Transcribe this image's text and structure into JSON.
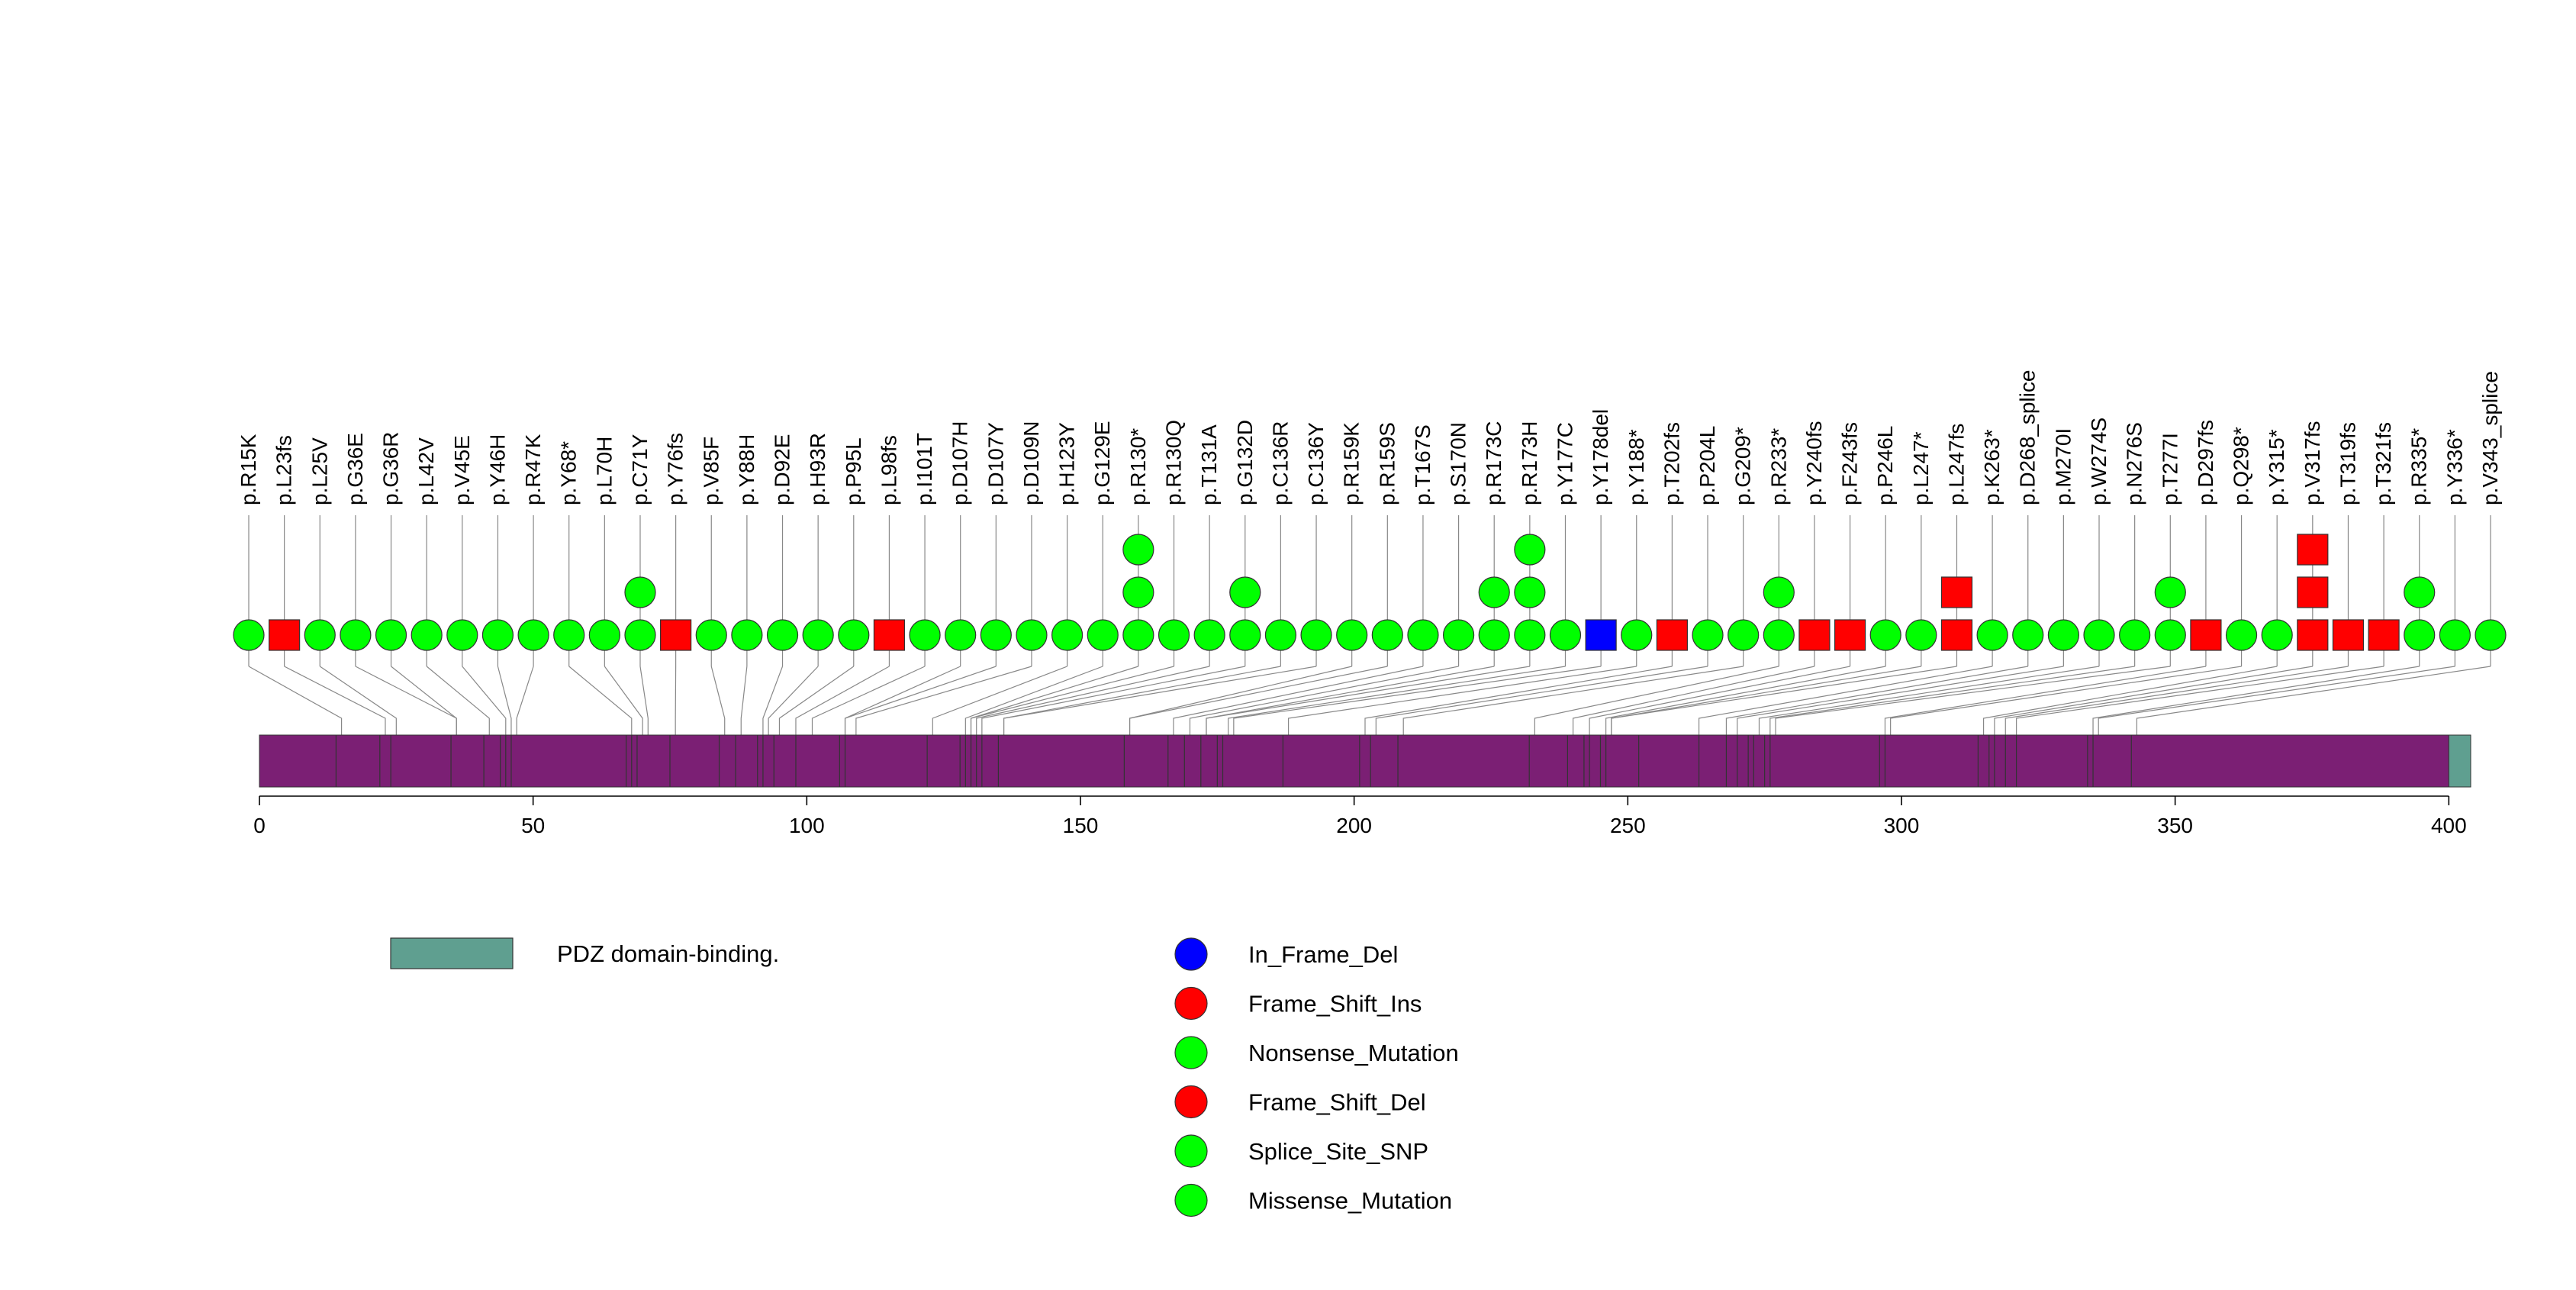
{
  "colors": {
    "protein_bar": "#7b1f74",
    "pdz_domain": "#5f9f90",
    "in_frame_del": "#0000ff",
    "frame_shift": "#ff0000",
    "missense": "#00ff00",
    "stem": "#888888"
  },
  "chart_data": {
    "type": "lollipop",
    "title": "",
    "protein_length": 404,
    "xlim": [
      0,
      404
    ],
    "xticks": [
      0,
      50,
      100,
      150,
      200,
      250,
      300,
      350,
      400
    ],
    "xtick_labels": [
      "0",
      "50",
      "100",
      "150",
      "200",
      "250",
      "300",
      "350",
      "400"
    ],
    "domains": [
      {
        "name": "PDZ domain-binding.",
        "start": 400,
        "end": 404,
        "color": "#5f9f90"
      }
    ],
    "exon_boundaries": [
      14,
      22,
      24,
      35,
      41,
      44,
      45,
      46,
      67,
      68,
      69,
      75,
      84,
      87,
      91,
      92,
      94,
      98,
      106,
      107,
      122,
      128,
      129,
      130,
      131,
      132,
      135,
      158,
      166,
      169,
      172,
      175,
      176,
      187,
      201,
      203,
      208,
      232,
      239,
      242,
      243,
      245,
      246,
      252,
      263,
      268,
      270,
      272,
      273,
      275,
      276,
      296,
      297,
      314,
      316,
      317,
      319,
      321,
      334,
      335,
      342
    ],
    "mutations": [
      {
        "label": "p.R15K",
        "pos": 15,
        "stack": [
          {
            "type": "Missense_Mutation",
            "shape": "circle"
          }
        ]
      },
      {
        "label": "p.L23fs",
        "pos": 23,
        "stack": [
          {
            "type": "Frame_Shift_Del",
            "shape": "square"
          }
        ]
      },
      {
        "label": "p.L25V",
        "pos": 25,
        "stack": [
          {
            "type": "Missense_Mutation",
            "shape": "circle"
          }
        ]
      },
      {
        "label": "p.G36E",
        "pos": 36,
        "stack": [
          {
            "type": "Missense_Mutation",
            "shape": "circle"
          }
        ]
      },
      {
        "label": "p.G36R",
        "pos": 36,
        "stack": [
          {
            "type": "Missense_Mutation",
            "shape": "circle"
          }
        ]
      },
      {
        "label": "p.L42V",
        "pos": 42,
        "stack": [
          {
            "type": "Missense_Mutation",
            "shape": "circle"
          }
        ]
      },
      {
        "label": "p.V45E",
        "pos": 45,
        "stack": [
          {
            "type": "Missense_Mutation",
            "shape": "circle"
          }
        ]
      },
      {
        "label": "p.Y46H",
        "pos": 46,
        "stack": [
          {
            "type": "Missense_Mutation",
            "shape": "circle"
          }
        ]
      },
      {
        "label": "p.R47K",
        "pos": 47,
        "stack": [
          {
            "type": "Missense_Mutation",
            "shape": "circle"
          }
        ]
      },
      {
        "label": "p.Y68*",
        "pos": 68,
        "stack": [
          {
            "type": "Nonsense_Mutation",
            "shape": "circle"
          }
        ]
      },
      {
        "label": "p.L70H",
        "pos": 70,
        "stack": [
          {
            "type": "Missense_Mutation",
            "shape": "circle"
          }
        ]
      },
      {
        "label": "p.C71Y",
        "pos": 71,
        "stack": [
          {
            "type": "Missense_Mutation",
            "shape": "circle"
          },
          {
            "type": "Missense_Mutation",
            "shape": "circle"
          }
        ]
      },
      {
        "label": "p.Y76fs",
        "pos": 76,
        "stack": [
          {
            "type": "Frame_Shift_Del",
            "shape": "square"
          }
        ]
      },
      {
        "label": "p.V85F",
        "pos": 85,
        "stack": [
          {
            "type": "Missense_Mutation",
            "shape": "circle"
          }
        ]
      },
      {
        "label": "p.Y88H",
        "pos": 88,
        "stack": [
          {
            "type": "Missense_Mutation",
            "shape": "circle"
          }
        ]
      },
      {
        "label": "p.D92E",
        "pos": 92,
        "stack": [
          {
            "type": "Missense_Mutation",
            "shape": "circle"
          }
        ]
      },
      {
        "label": "p.H93R",
        "pos": 93,
        "stack": [
          {
            "type": "Missense_Mutation",
            "shape": "circle"
          }
        ]
      },
      {
        "label": "p.P95L",
        "pos": 95,
        "stack": [
          {
            "type": "Missense_Mutation",
            "shape": "circle"
          }
        ]
      },
      {
        "label": "p.L98fs",
        "pos": 98,
        "stack": [
          {
            "type": "Frame_Shift_Del",
            "shape": "square"
          }
        ]
      },
      {
        "label": "p.I101T",
        "pos": 101,
        "stack": [
          {
            "type": "Missense_Mutation",
            "shape": "circle"
          }
        ]
      },
      {
        "label": "p.D107H",
        "pos": 107,
        "stack": [
          {
            "type": "Missense_Mutation",
            "shape": "circle"
          }
        ]
      },
      {
        "label": "p.D107Y",
        "pos": 107,
        "stack": [
          {
            "type": "Missense_Mutation",
            "shape": "circle"
          }
        ]
      },
      {
        "label": "p.D109N",
        "pos": 109,
        "stack": [
          {
            "type": "Missense_Mutation",
            "shape": "circle"
          }
        ]
      },
      {
        "label": "p.H123Y",
        "pos": 123,
        "stack": [
          {
            "type": "Missense_Mutation",
            "shape": "circle"
          }
        ]
      },
      {
        "label": "p.G129E",
        "pos": 129,
        "stack": [
          {
            "type": "Missense_Mutation",
            "shape": "circle"
          }
        ]
      },
      {
        "label": "p.R130*",
        "pos": 130,
        "stack": [
          {
            "type": "Nonsense_Mutation",
            "shape": "circle"
          },
          {
            "type": "Nonsense_Mutation",
            "shape": "circle"
          },
          {
            "type": "Nonsense_Mutation",
            "shape": "circle"
          }
        ]
      },
      {
        "label": "p.R130Q",
        "pos": 130,
        "stack": [
          {
            "type": "Missense_Mutation",
            "shape": "circle"
          }
        ]
      },
      {
        "label": "p.T131A",
        "pos": 131,
        "stack": [
          {
            "type": "Missense_Mutation",
            "shape": "circle"
          }
        ]
      },
      {
        "label": "p.G132D",
        "pos": 132,
        "stack": [
          {
            "type": "Missense_Mutation",
            "shape": "circle"
          },
          {
            "type": "Missense_Mutation",
            "shape": "circle"
          }
        ]
      },
      {
        "label": "p.C136R",
        "pos": 136,
        "stack": [
          {
            "type": "Missense_Mutation",
            "shape": "circle"
          }
        ]
      },
      {
        "label": "p.C136Y",
        "pos": 136,
        "stack": [
          {
            "type": "Missense_Mutation",
            "shape": "circle"
          }
        ]
      },
      {
        "label": "p.R159K",
        "pos": 159,
        "stack": [
          {
            "type": "Missense_Mutation",
            "shape": "circle"
          }
        ]
      },
      {
        "label": "p.R159S",
        "pos": 159,
        "stack": [
          {
            "type": "Missense_Mutation",
            "shape": "circle"
          }
        ]
      },
      {
        "label": "p.T167S",
        "pos": 167,
        "stack": [
          {
            "type": "Missense_Mutation",
            "shape": "circle"
          }
        ]
      },
      {
        "label": "p.S170N",
        "pos": 170,
        "stack": [
          {
            "type": "Missense_Mutation",
            "shape": "circle"
          }
        ]
      },
      {
        "label": "p.R173C",
        "pos": 173,
        "stack": [
          {
            "type": "Missense_Mutation",
            "shape": "circle"
          },
          {
            "type": "Missense_Mutation",
            "shape": "circle"
          }
        ]
      },
      {
        "label": "p.R173H",
        "pos": 173,
        "stack": [
          {
            "type": "Missense_Mutation",
            "shape": "circle"
          },
          {
            "type": "Missense_Mutation",
            "shape": "circle"
          },
          {
            "type": "Missense_Mutation",
            "shape": "circle"
          }
        ]
      },
      {
        "label": "p.Y177C",
        "pos": 177,
        "stack": [
          {
            "type": "Missense_Mutation",
            "shape": "circle"
          }
        ]
      },
      {
        "label": "p.Y178del",
        "pos": 178,
        "stack": [
          {
            "type": "In_Frame_Del",
            "shape": "square"
          }
        ]
      },
      {
        "label": "p.Y188*",
        "pos": 188,
        "stack": [
          {
            "type": "Nonsense_Mutation",
            "shape": "circle"
          }
        ]
      },
      {
        "label": "p.T202fs",
        "pos": 202,
        "stack": [
          {
            "type": "Frame_Shift_Del",
            "shape": "square"
          }
        ]
      },
      {
        "label": "p.P204L",
        "pos": 204,
        "stack": [
          {
            "type": "Missense_Mutation",
            "shape": "circle"
          }
        ]
      },
      {
        "label": "p.G209*",
        "pos": 209,
        "stack": [
          {
            "type": "Nonsense_Mutation",
            "shape": "circle"
          }
        ]
      },
      {
        "label": "p.R233*",
        "pos": 233,
        "stack": [
          {
            "type": "Nonsense_Mutation",
            "shape": "circle"
          },
          {
            "type": "Nonsense_Mutation",
            "shape": "circle"
          }
        ]
      },
      {
        "label": "p.Y240fs",
        "pos": 240,
        "stack": [
          {
            "type": "Frame_Shift_Del",
            "shape": "square"
          }
        ]
      },
      {
        "label": "p.F243fs",
        "pos": 243,
        "stack": [
          {
            "type": "Frame_Shift_Del",
            "shape": "square"
          }
        ]
      },
      {
        "label": "p.P246L",
        "pos": 246,
        "stack": [
          {
            "type": "Missense_Mutation",
            "shape": "circle"
          }
        ]
      },
      {
        "label": "p.L247*",
        "pos": 247,
        "stack": [
          {
            "type": "Nonsense_Mutation",
            "shape": "circle"
          }
        ]
      },
      {
        "label": "p.L247fs",
        "pos": 247,
        "stack": [
          {
            "type": "Frame_Shift_Del",
            "shape": "square"
          },
          {
            "type": "Frame_Shift_Del",
            "shape": "square"
          }
        ]
      },
      {
        "label": "p.K263*",
        "pos": 263,
        "stack": [
          {
            "type": "Nonsense_Mutation",
            "shape": "circle"
          }
        ]
      },
      {
        "label": "p.D268_splice",
        "pos": 268,
        "stack": [
          {
            "type": "Splice_Site_SNP",
            "shape": "circle"
          }
        ]
      },
      {
        "label": "p.M270I",
        "pos": 270,
        "stack": [
          {
            "type": "Missense_Mutation",
            "shape": "circle"
          }
        ]
      },
      {
        "label": "p.W274S",
        "pos": 274,
        "stack": [
          {
            "type": "Missense_Mutation",
            "shape": "circle"
          }
        ]
      },
      {
        "label": "p.N276S",
        "pos": 276,
        "stack": [
          {
            "type": "Missense_Mutation",
            "shape": "circle"
          }
        ]
      },
      {
        "label": "p.T277I",
        "pos": 277,
        "stack": [
          {
            "type": "Missense_Mutation",
            "shape": "circle"
          },
          {
            "type": "Missense_Mutation",
            "shape": "circle"
          }
        ]
      },
      {
        "label": "p.D297fs",
        "pos": 297,
        "stack": [
          {
            "type": "Frame_Shift_Del",
            "shape": "square"
          }
        ]
      },
      {
        "label": "p.Q298*",
        "pos": 298,
        "stack": [
          {
            "type": "Nonsense_Mutation",
            "shape": "circle"
          }
        ]
      },
      {
        "label": "p.Y315*",
        "pos": 315,
        "stack": [
          {
            "type": "Nonsense_Mutation",
            "shape": "circle"
          }
        ]
      },
      {
        "label": "p.V317fs",
        "pos": 317,
        "stack": [
          {
            "type": "Frame_Shift_Del",
            "shape": "square"
          },
          {
            "type": "Frame_Shift_Del",
            "shape": "square"
          },
          {
            "type": "Frame_Shift_Del",
            "shape": "square"
          }
        ]
      },
      {
        "label": "p.T319fs",
        "pos": 319,
        "stack": [
          {
            "type": "Frame_Shift_Del",
            "shape": "square"
          }
        ]
      },
      {
        "label": "p.T321fs",
        "pos": 321,
        "stack": [
          {
            "type": "Frame_Shift_Del",
            "shape": "square"
          }
        ]
      },
      {
        "label": "p.R335*",
        "pos": 335,
        "stack": [
          {
            "type": "Nonsense_Mutation",
            "shape": "circle"
          },
          {
            "type": "Nonsense_Mutation",
            "shape": "circle"
          }
        ]
      },
      {
        "label": "p.Y336*",
        "pos": 336,
        "stack": [
          {
            "type": "Nonsense_Mutation",
            "shape": "circle"
          }
        ]
      },
      {
        "label": "p.V343_splice",
        "pos": 343,
        "stack": [
          {
            "type": "Splice_Site_SNP",
            "shape": "circle"
          }
        ]
      }
    ],
    "domain_legend": [
      {
        "label": "PDZ domain-binding.",
        "color": "#5f9f90"
      }
    ],
    "mutation_legend": [
      {
        "label": "In_Frame_Del",
        "color": "#0000ff"
      },
      {
        "label": "Frame_Shift_Ins",
        "color": "#ff0000"
      },
      {
        "label": "Nonsense_Mutation",
        "color": "#00ff00"
      },
      {
        "label": "Frame_Shift_Del",
        "color": "#ff0000"
      },
      {
        "label": "Splice_Site_SNP",
        "color": "#00ff00"
      },
      {
        "label": "Missense_Mutation",
        "color": "#00ff00"
      }
    ]
  }
}
